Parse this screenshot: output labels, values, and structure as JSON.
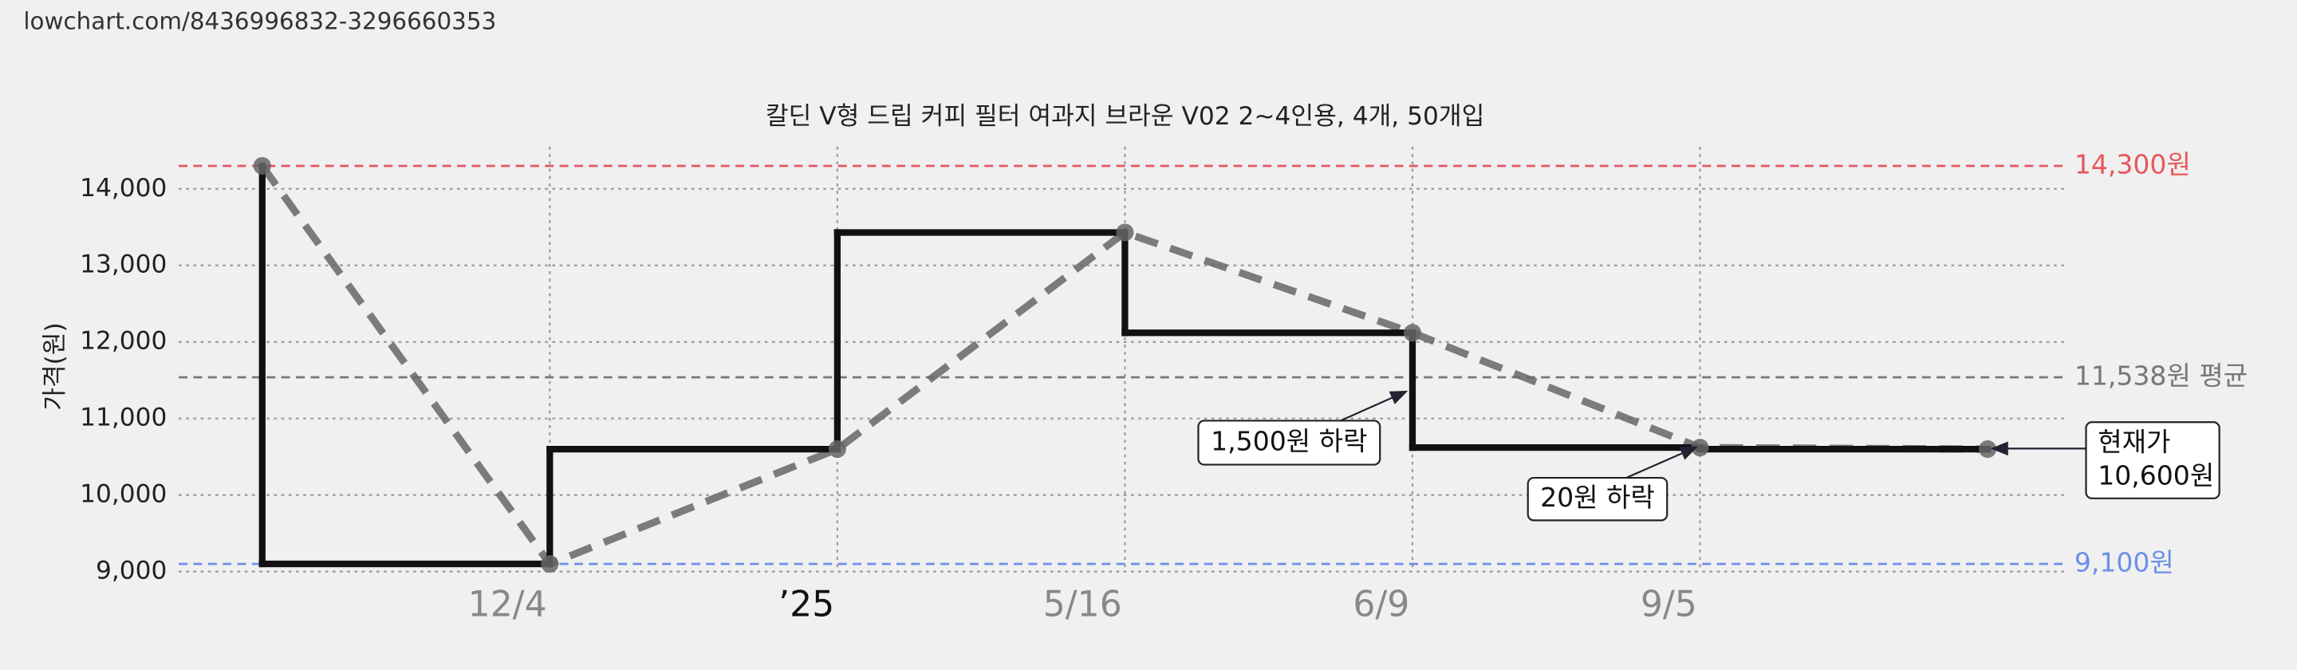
{
  "header": {
    "url": "lowchart.com/8436996832-3296660353"
  },
  "chart_data": {
    "type": "step-line",
    "title": "칼딘 V형 드립 커피 필터 여과지 브라운 V02 2~4인용, 4개, 50개입",
    "y_label": "가격(원)",
    "categories": [
      null,
      "12/4",
      "’25",
      "5/16",
      "6/9",
      "9/5",
      null
    ],
    "series": [
      {
        "color": "#111111",
        "values": [
          14300,
          9100,
          10600,
          13430,
          12120,
          10620,
          10600
        ]
      }
    ],
    "trend_color": "#666666",
    "ylim": [
      9000,
      14550
    ],
    "yticks": [
      {
        "value": 9000,
        "label": "9,000"
      },
      {
        "value": 10000,
        "label": "10,000"
      },
      {
        "value": 11000,
        "label": "11,000"
      },
      {
        "value": 12000,
        "label": "12,000"
      },
      {
        "value": 13000,
        "label": "13,000"
      },
      {
        "value": 14000,
        "label": "14,000"
      }
    ],
    "grid": true,
    "reference_lines": [
      {
        "value": 14300,
        "label": "14,300원",
        "color": "#e8575a"
      },
      {
        "value": 11538,
        "label": "11,538원 평균",
        "color": "#777777"
      },
      {
        "value": 9100,
        "label": "9,100원",
        "color": "#6b8fe8"
      }
    ],
    "annotations": [
      {
        "lines": [
          "1,500원 하락"
        ]
      },
      {
        "lines": [
          "20원 하락"
        ]
      },
      {
        "lines": [
          "현재가",
          "10,600원"
        ]
      }
    ]
  }
}
